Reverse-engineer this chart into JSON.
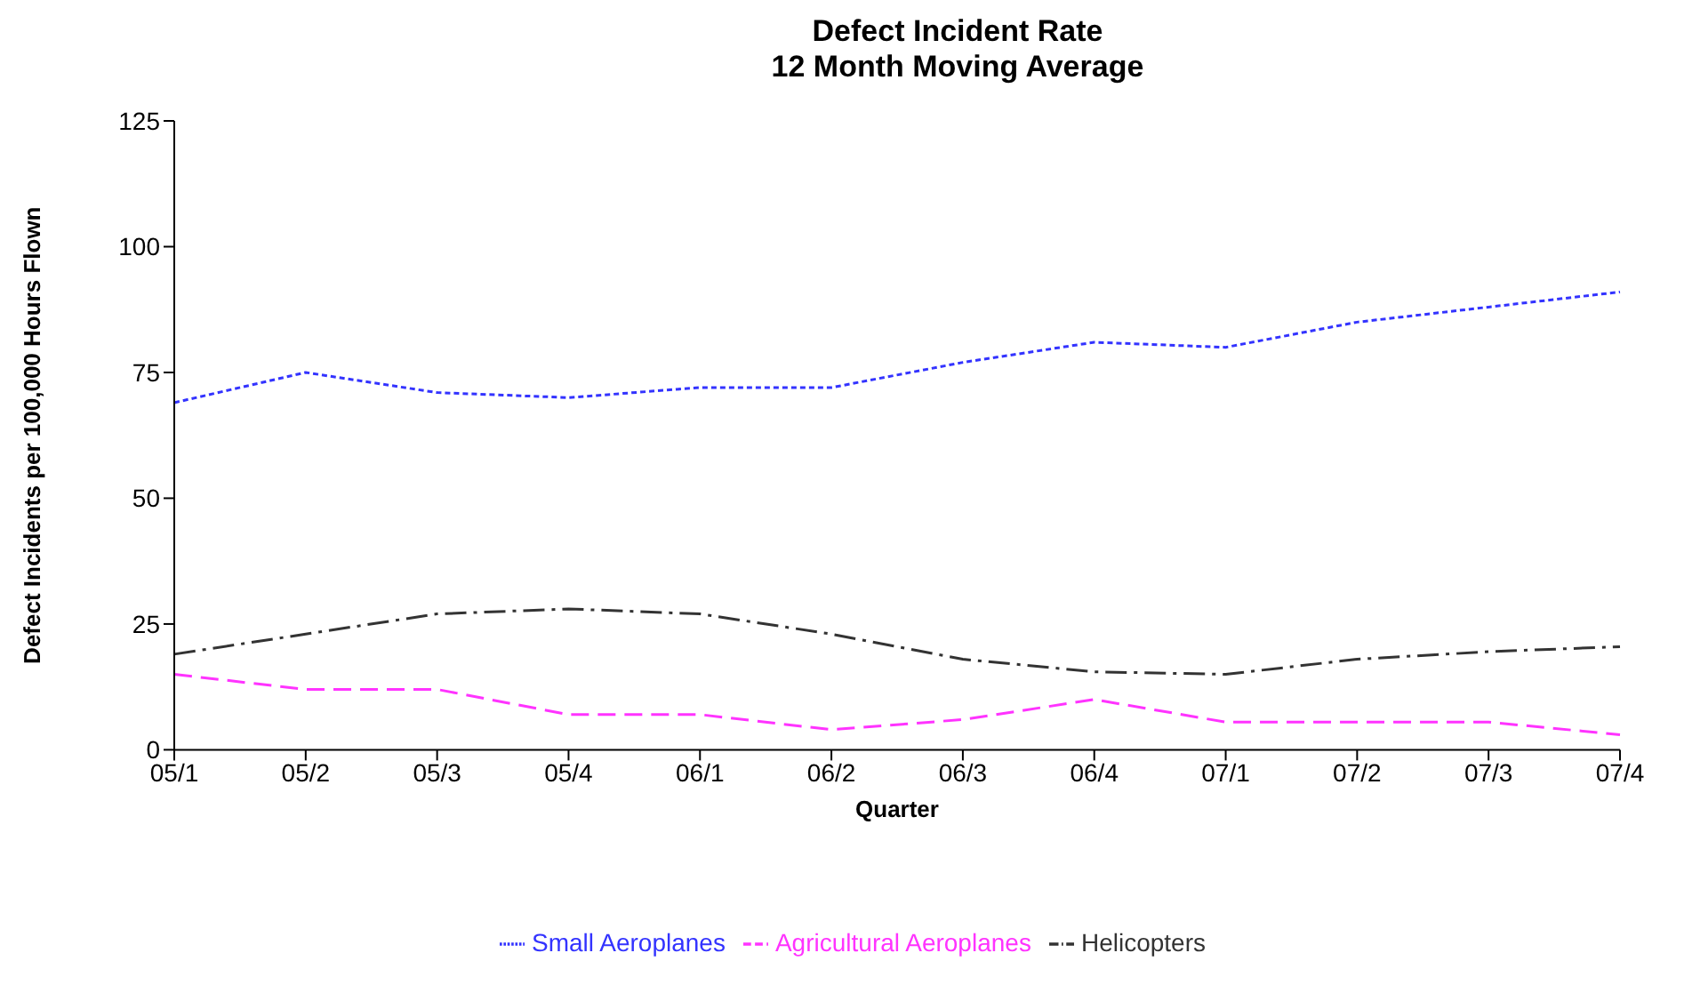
{
  "chart_data": {
    "type": "line",
    "title": "Defect Incident Rate",
    "subtitle": "12 Month Moving Average",
    "xlabel": "Quarter",
    "ylabel": "Defect Incidents per 100,000 Hours Flown",
    "categories": [
      "05/1",
      "05/2",
      "05/3",
      "05/4",
      "06/1",
      "06/2",
      "06/3",
      "06/4",
      "07/1",
      "07/2",
      "07/3",
      "07/4"
    ],
    "series": [
      {
        "name": "Small Aeroplanes",
        "color": "#3333ff",
        "line_style": "dotted",
        "values": [
          69,
          75,
          71,
          70,
          72,
          72,
          77,
          81,
          80,
          85,
          88,
          91
        ]
      },
      {
        "name": "Agricultural Aeroplanes",
        "color": "#ff33ff",
        "line_style": "dashed",
        "values": [
          15,
          12,
          12,
          7,
          7,
          4,
          6,
          10,
          5.5,
          5.5,
          5.5,
          3
        ]
      },
      {
        "name": "Helicopters",
        "color": "#333333",
        "line_style": "dashdot",
        "values": [
          19,
          23,
          27,
          28,
          27,
          23,
          18,
          15.5,
          15,
          18,
          19.5,
          20.5
        ]
      }
    ],
    "ylim": [
      0,
      125
    ],
    "yticks": [
      0,
      25,
      50,
      75,
      100,
      125
    ],
    "grid": false,
    "legend": "bottom",
    "marker": "none"
  }
}
